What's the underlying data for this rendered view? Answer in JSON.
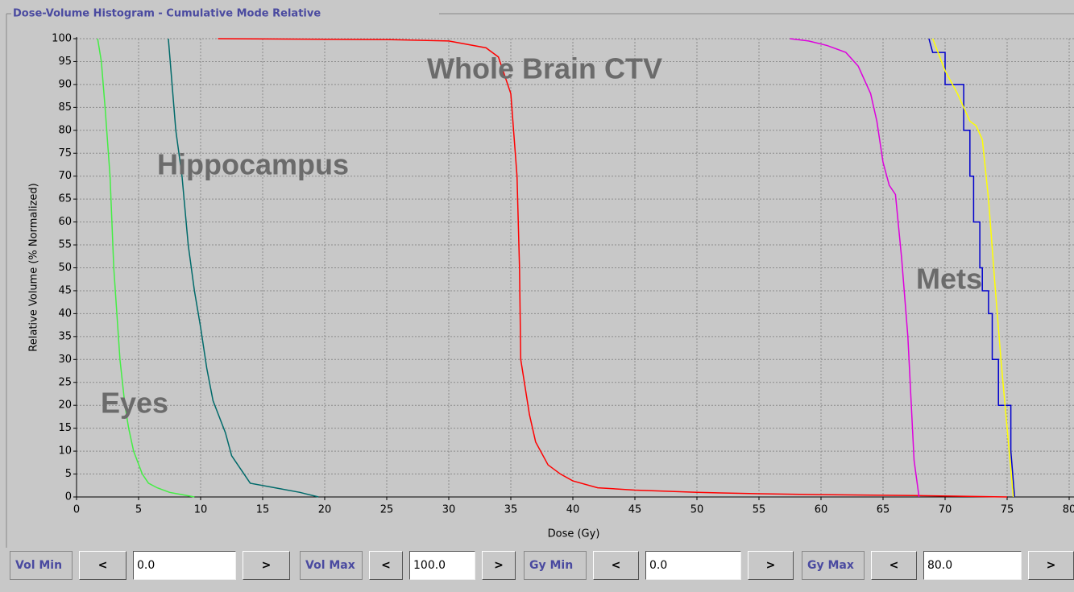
{
  "panel_title": "Dose-Volume Histogram - Cumulative Mode Relative",
  "chart_data": {
    "type": "line",
    "xlabel": "Dose (Gy)",
    "ylabel": "Relative Volume (% Normalized)",
    "xlim": [
      0,
      80
    ],
    "ylim": [
      0,
      100
    ],
    "xticks": [
      0,
      5,
      10,
      15,
      20,
      25,
      30,
      35,
      40,
      45,
      50,
      55,
      60,
      65,
      70,
      75,
      80
    ],
    "yticks": [
      0,
      5,
      10,
      15,
      20,
      25,
      30,
      35,
      40,
      45,
      50,
      55,
      60,
      65,
      70,
      75,
      80,
      85,
      90,
      95,
      100
    ],
    "grid": true,
    "annotations": [
      "Whole Brain CTV",
      "Hippocampus",
      "Eyes",
      "Mets"
    ],
    "series": [
      {
        "color": "#44ee44",
        "x": [
          1.7,
          2.0,
          2.3,
          2.7,
          3.0,
          3.5,
          3.9,
          4.2,
          4.6,
          5.3,
          5.8,
          6.5,
          7.5,
          8.5,
          9.5
        ],
        "values": [
          100,
          95,
          85,
          70,
          50,
          30,
          20,
          15,
          10,
          5,
          3,
          2,
          1,
          0.5,
          0
        ]
      },
      {
        "color": "#006a6a",
        "x": [
          7.4,
          8,
          8.5,
          9,
          9.5,
          10,
          10.5,
          11,
          12,
          12.5,
          13,
          13.5,
          14,
          16,
          18,
          19.5
        ],
        "values": [
          100,
          80,
          70,
          55,
          45,
          37,
          28,
          21,
          14,
          9,
          7,
          5,
          3,
          2,
          1,
          0
        ]
      },
      {
        "color": "#ff0000",
        "x": [
          11.4,
          25,
          30,
          33,
          34,
          35,
          35.5,
          35.7,
          35.8,
          36.5,
          37,
          38,
          39,
          40,
          42,
          45,
          50,
          55,
          60,
          67.5,
          75
        ],
        "values": [
          100,
          99.8,
          99.5,
          98,
          96,
          88,
          70,
          50,
          30,
          18,
          12,
          7,
          5,
          3.5,
          2,
          1.5,
          1,
          0.7,
          0.5,
          0.3,
          0
        ]
      },
      {
        "color": "#dd00dd",
        "x": [
          57.5,
          59,
          60.5,
          62,
          63,
          64,
          64.5,
          65,
          65.5,
          66,
          66.5,
          67,
          67.5,
          67.7,
          67.9
        ],
        "values": [
          100,
          99.5,
          98.5,
          97,
          94,
          88,
          82,
          73,
          68,
          66,
          52,
          35,
          8,
          4,
          0
        ]
      },
      {
        "color": "#0000cc",
        "x": [
          68.7,
          69,
          70,
          70,
          71.5,
          71.5,
          72,
          72,
          72.3,
          72.3,
          72.8,
          72.8,
          73,
          73,
          73.5,
          73.5,
          73.8,
          73.8,
          74.3,
          74.3,
          75.3,
          75.3,
          75.6
        ],
        "values": [
          100,
          97,
          97,
          90,
          90,
          80,
          80,
          70,
          70,
          60,
          60,
          50,
          50,
          45,
          45,
          40,
          40,
          30,
          30,
          20,
          20,
          10,
          0
        ]
      },
      {
        "color": "#ffff00",
        "x": [
          69,
          70,
          71,
          71.5,
          72,
          72.5,
          73,
          73.5,
          74,
          74.5,
          75,
          75.5
        ],
        "values": [
          100,
          93,
          88,
          85,
          82,
          81,
          78,
          65,
          47,
          30,
          15,
          0
        ]
      }
    ]
  },
  "controls": [
    {
      "label": "Vol Min",
      "dec": "<",
      "field": "0.0",
      "inc": ">"
    },
    {
      "label": "Vol Max",
      "dec": "<",
      "field": "100.0",
      "inc": ">"
    },
    {
      "label": "Gy Min",
      "dec": "<",
      "field": "0.0",
      "inc": ">"
    },
    {
      "label": "Gy Max",
      "dec": "<",
      "field": "80.0",
      "inc": ">"
    }
  ]
}
